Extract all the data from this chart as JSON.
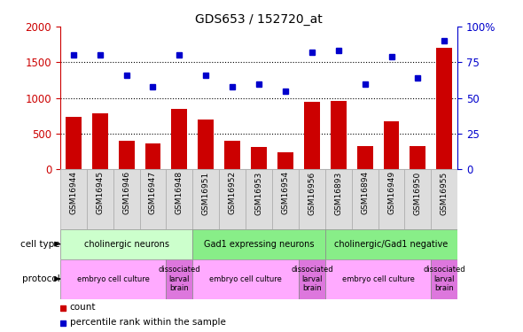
{
  "title": "GDS653 / 152720_at",
  "samples": [
    "GSM16944",
    "GSM16945",
    "GSM16946",
    "GSM16947",
    "GSM16948",
    "GSM16951",
    "GSM16952",
    "GSM16953",
    "GSM16954",
    "GSM16956",
    "GSM16893",
    "GSM16894",
    "GSM16949",
    "GSM16950",
    "GSM16955"
  ],
  "counts": [
    740,
    780,
    400,
    360,
    850,
    700,
    400,
    310,
    240,
    950,
    960,
    330,
    670,
    330,
    1700
  ],
  "percentile": [
    80,
    80,
    66,
    58,
    80,
    66,
    58,
    60,
    55,
    82,
    83,
    60,
    79,
    64,
    90
  ],
  "bar_color": "#cc0000",
  "dot_color": "#0000cc",
  "ylim_left": [
    0,
    2000
  ],
  "ylim_right": [
    0,
    100
  ],
  "yticks_left": [
    0,
    500,
    1000,
    1500,
    2000
  ],
  "yticks_right": [
    0,
    25,
    50,
    75,
    100
  ],
  "cell_groups": [
    {
      "label": "cholinergic neurons",
      "start": 0,
      "end": 5,
      "color": "#ccffcc"
    },
    {
      "label": "Gad1 expressing neurons",
      "start": 5,
      "end": 10,
      "color": "#88ee88"
    },
    {
      "label": "cholinergic/Gad1 negative",
      "start": 10,
      "end": 15,
      "color": "#88ee88"
    }
  ],
  "prot_groups": [
    {
      "label": "embryo cell culture",
      "start": 0,
      "end": 4,
      "color": "#ffaaff"
    },
    {
      "label": "dissociated\nlarval\nbrain",
      "start": 4,
      "end": 5,
      "color": "#dd77dd"
    },
    {
      "label": "embryo cell culture",
      "start": 5,
      "end": 9,
      "color": "#ffaaff"
    },
    {
      "label": "dissociated\nlarval\nbrain",
      "start": 9,
      "end": 10,
      "color": "#dd77dd"
    },
    {
      "label": "embryo cell culture",
      "start": 10,
      "end": 14,
      "color": "#ffaaff"
    },
    {
      "label": "dissociated\nlarval\nbrain",
      "start": 14,
      "end": 15,
      "color": "#dd77dd"
    }
  ],
  "bar_color_legend": "#cc0000",
  "dot_color_legend": "#0000cc",
  "left_axis_color": "#cc0000",
  "right_axis_color": "#0000cc"
}
